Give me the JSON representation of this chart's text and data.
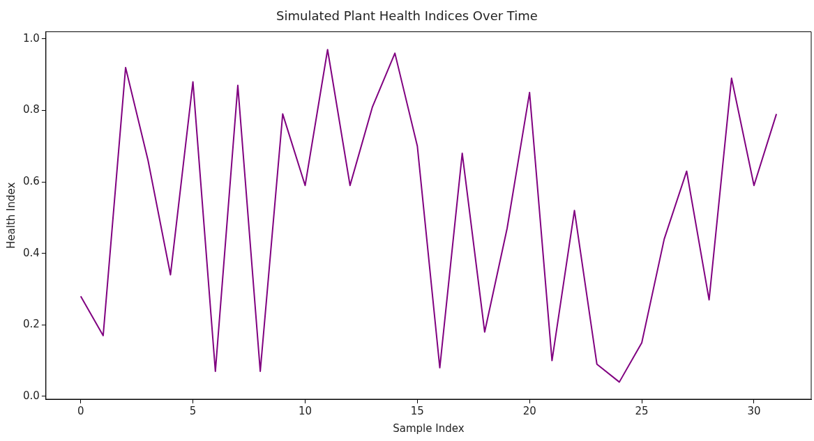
{
  "chart_data": {
    "type": "line",
    "title": "Simulated Plant Health Indices Over Time",
    "xlabel": "Sample Index",
    "ylabel": "Health Index",
    "x": [
      0,
      1,
      2,
      3,
      4,
      5,
      6,
      7,
      8,
      9,
      10,
      11,
      12,
      13,
      14,
      15,
      16,
      17,
      18,
      19,
      20,
      21,
      22,
      23,
      24,
      25,
      26,
      27,
      28,
      29,
      30,
      31
    ],
    "series": [
      {
        "color": "#800080",
        "values": [
          0.28,
          0.17,
          0.92,
          0.66,
          0.34,
          0.88,
          0.07,
          0.87,
          0.07,
          0.79,
          0.59,
          0.97,
          0.59,
          0.81,
          0.96,
          0.7,
          0.08,
          0.68,
          0.18,
          0.47,
          0.85,
          0.1,
          0.52,
          0.09,
          0.04,
          0.15,
          0.44,
          0.63,
          0.27,
          0.89,
          0.59,
          0.79
        ]
      }
    ],
    "xlim": [
      -1.55,
      32.55
    ],
    "ylim": [
      -0.008,
      1.02
    ],
    "xticks": [
      0,
      5,
      10,
      15,
      20,
      25,
      30
    ],
    "yticks": [
      {
        "value": 0,
        "label": "0.0"
      },
      {
        "value": 0.2,
        "label": "0.2"
      },
      {
        "value": 0.4,
        "label": "0.4"
      },
      {
        "value": 0.6,
        "label": "0.6"
      },
      {
        "value": 0.8,
        "label": "0.8"
      },
      {
        "value": 1,
        "label": "1.0"
      }
    ],
    "grid": false,
    "legend": false,
    "marker": "none",
    "line_style": "solid"
  }
}
